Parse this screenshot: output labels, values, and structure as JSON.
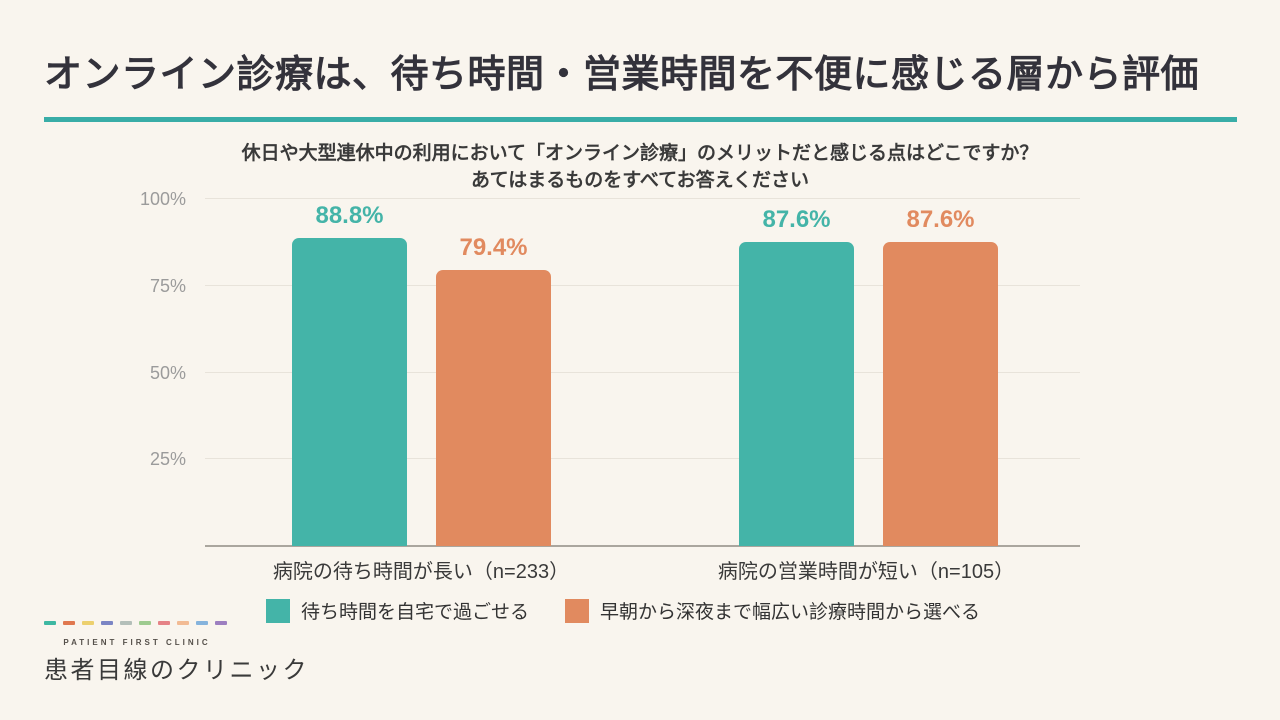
{
  "header": {
    "title": "オンライン診療は、待ち時間・営業時間を不便に感じる層から評価",
    "underline_color": "#39ada7"
  },
  "chart_data": {
    "type": "bar",
    "title": "休日や大型連休中の利用において「オンライン診療」のメリットだと感じる点はどこですか？ あてはまるものをすべてお答えください",
    "title_line1": "休日や大型連休中の利用において「オンライン診療」のメリットだと感じる点はどこですか？",
    "title_line2": "あてはまるものをすべてお答えください",
    "categories": [
      "病院の待ち時間が長い（n=233）",
      "病院の営業時間が短い（n=105）"
    ],
    "series": [
      {
        "name": "待ち時間を自宅で過ごせる",
        "color": "#44b4a8",
        "values": [
          88.8,
          87.6
        ]
      },
      {
        "name": "早朝から深夜まで幅広い診療時間から選べる",
        "color": "#e18a5f",
        "values": [
          79.4,
          87.6
        ]
      }
    ],
    "value_labels": [
      [
        "88.8%",
        "87.6%"
      ],
      [
        "79.4%",
        "87.6%"
      ]
    ],
    "y_ticks": [
      {
        "label": "100%",
        "value": 100
      },
      {
        "label": "75%",
        "value": 75
      },
      {
        "label": "50%",
        "value": 50
      },
      {
        "label": "25%",
        "value": 25
      }
    ],
    "ylim": [
      0,
      100
    ],
    "grid": true,
    "legend_position": "bottom",
    "colors": {
      "gridline": "#e8e3da",
      "axis": "#aaa69e",
      "tick_text": "#9b9b9b"
    }
  },
  "footer": {
    "logo_small_text": "PATIENT FIRST CLINIC",
    "logo_text": "患者目線のクリニック",
    "logo_dash_colors": [
      "#3eb8a2",
      "#e0784f",
      "#ecd06e",
      "#7b85c4",
      "#b4bfb9",
      "#9ecb8f",
      "#e58286",
      "#f2bb94",
      "#85b3dc",
      "#9d7fc0"
    ]
  }
}
